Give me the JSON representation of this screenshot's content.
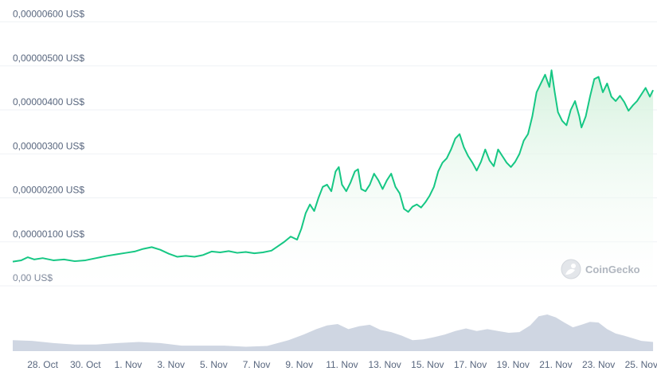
{
  "chart_data": {
    "type": "area",
    "ylabel": "",
    "xlabel": "",
    "ylim": [
      0,
      6e-06
    ],
    "y_ticks": [
      {
        "value": 6e-06,
        "label": "0,00000600 US$"
      },
      {
        "value": 5e-06,
        "label": "0,00000500 US$"
      },
      {
        "value": 4e-06,
        "label": "0,00000400 US$"
      },
      {
        "value": 3e-06,
        "label": "0,00000300 US$"
      },
      {
        "value": 2e-06,
        "label": "0,00000200 US$"
      },
      {
        "value": 1e-06,
        "label": "0,00000100 US$"
      },
      {
        "value": 0,
        "label": "0,00 US$"
      }
    ],
    "x_range": [
      26.6,
      56.1
    ],
    "x_ticks": [
      {
        "day": 28,
        "label": "28. Oct"
      },
      {
        "day": 30,
        "label": "30. Oct"
      },
      {
        "day": 32,
        "label": "1. Nov"
      },
      {
        "day": 34,
        "label": "3. Nov"
      },
      {
        "day": 36,
        "label": "5. Nov"
      },
      {
        "day": 38,
        "label": "7. Nov"
      },
      {
        "day": 40,
        "label": "9. Nov"
      },
      {
        "day": 42,
        "label": "11. Nov"
      },
      {
        "day": 44,
        "label": "13. Nov"
      },
      {
        "day": 46,
        "label": "15. Nov"
      },
      {
        "day": 48,
        "label": "17. Nov"
      },
      {
        "day": 50,
        "label": "19. Nov"
      },
      {
        "day": 52,
        "label": "21. Nov"
      },
      {
        "day": 54,
        "label": "23. Nov"
      },
      {
        "day": 56,
        "label": "25. Nov"
      }
    ],
    "series": [
      {
        "values": [
          [
            26.6,
            5.5e-07
          ],
          [
            27.0,
            5.8e-07
          ],
          [
            27.3,
            6.5e-07
          ],
          [
            27.6,
            6e-07
          ],
          [
            28.0,
            6.3e-07
          ],
          [
            28.5,
            5.8e-07
          ],
          [
            29.0,
            6e-07
          ],
          [
            29.5,
            5.6e-07
          ],
          [
            30.0,
            5.8e-07
          ],
          [
            30.5,
            6.3e-07
          ],
          [
            31.0,
            6.8e-07
          ],
          [
            31.5,
            7.2e-07
          ],
          [
            31.9,
            7.5e-07
          ],
          [
            32.3,
            7.8e-07
          ],
          [
            32.7,
            8.4e-07
          ],
          [
            33.1,
            8.8e-07
          ],
          [
            33.5,
            8.2e-07
          ],
          [
            33.9,
            7.3e-07
          ],
          [
            34.3,
            6.6e-07
          ],
          [
            34.7,
            6.8e-07
          ],
          [
            35.1,
            6.6e-07
          ],
          [
            35.5,
            7e-07
          ],
          [
            35.9,
            7.8e-07
          ],
          [
            36.3,
            7.6e-07
          ],
          [
            36.7,
            7.9e-07
          ],
          [
            37.1,
            7.5e-07
          ],
          [
            37.5,
            7.7e-07
          ],
          [
            37.9,
            7.4e-07
          ],
          [
            38.3,
            7.6e-07
          ],
          [
            38.7,
            8e-07
          ],
          [
            39.0,
            9e-07
          ],
          [
            39.3,
            1e-06
          ],
          [
            39.6,
            1.12e-06
          ],
          [
            39.9,
            1.05e-06
          ],
          [
            40.1,
            1.3e-06
          ],
          [
            40.3,
            1.65e-06
          ],
          [
            40.5,
            1.85e-06
          ],
          [
            40.7,
            1.7e-06
          ],
          [
            40.9,
            2e-06
          ],
          [
            41.1,
            2.25e-06
          ],
          [
            41.3,
            2.3e-06
          ],
          [
            41.5,
            2.15e-06
          ],
          [
            41.7,
            2.6e-06
          ],
          [
            41.85,
            2.7e-06
          ],
          [
            42.0,
            2.3e-06
          ],
          [
            42.2,
            2.15e-06
          ],
          [
            42.4,
            2.35e-06
          ],
          [
            42.6,
            2.6e-06
          ],
          [
            42.75,
            2.65e-06
          ],
          [
            42.9,
            2.2e-06
          ],
          [
            43.1,
            2.15e-06
          ],
          [
            43.3,
            2.3e-06
          ],
          [
            43.5,
            2.55e-06
          ],
          [
            43.7,
            2.4e-06
          ],
          [
            43.9,
            2.2e-06
          ],
          [
            44.1,
            2.4e-06
          ],
          [
            44.3,
            2.55e-06
          ],
          [
            44.5,
            2.25e-06
          ],
          [
            44.7,
            2.1e-06
          ],
          [
            44.9,
            1.75e-06
          ],
          [
            45.1,
            1.68e-06
          ],
          [
            45.3,
            1.8e-06
          ],
          [
            45.5,
            1.85e-06
          ],
          [
            45.7,
            1.78e-06
          ],
          [
            45.9,
            1.9e-06
          ],
          [
            46.1,
            2.05e-06
          ],
          [
            46.3,
            2.25e-06
          ],
          [
            46.5,
            2.6e-06
          ],
          [
            46.7,
            2.8e-06
          ],
          [
            46.9,
            2.9e-06
          ],
          [
            47.1,
            3.1e-06
          ],
          [
            47.3,
            3.35e-06
          ],
          [
            47.5,
            3.45e-06
          ],
          [
            47.7,
            3.15e-06
          ],
          [
            47.9,
            2.95e-06
          ],
          [
            48.1,
            2.8e-06
          ],
          [
            48.3,
            2.62e-06
          ],
          [
            48.5,
            2.82e-06
          ],
          [
            48.7,
            3.1e-06
          ],
          [
            48.9,
            2.85e-06
          ],
          [
            49.1,
            2.72e-06
          ],
          [
            49.3,
            3.1e-06
          ],
          [
            49.5,
            2.95e-06
          ],
          [
            49.7,
            2.8e-06
          ],
          [
            49.9,
            2.7e-06
          ],
          [
            50.1,
            2.82e-06
          ],
          [
            50.3,
            3e-06
          ],
          [
            50.5,
            3.3e-06
          ],
          [
            50.7,
            3.45e-06
          ],
          [
            50.9,
            3.85e-06
          ],
          [
            51.1,
            4.4e-06
          ],
          [
            51.3,
            4.6e-06
          ],
          [
            51.5,
            4.8e-06
          ],
          [
            51.7,
            4.52e-06
          ],
          [
            51.8,
            4.9e-06
          ],
          [
            51.95,
            4.4e-06
          ],
          [
            52.1,
            3.95e-06
          ],
          [
            52.3,
            3.75e-06
          ],
          [
            52.5,
            3.65e-06
          ],
          [
            52.7,
            4e-06
          ],
          [
            52.9,
            4.2e-06
          ],
          [
            53.1,
            3.85e-06
          ],
          [
            53.2,
            3.6e-06
          ],
          [
            53.4,
            3.85e-06
          ],
          [
            53.6,
            4.3e-06
          ],
          [
            53.8,
            4.7e-06
          ],
          [
            54.0,
            4.75e-06
          ],
          [
            54.2,
            4.4e-06
          ],
          [
            54.4,
            4.6e-06
          ],
          [
            54.6,
            4.3e-06
          ],
          [
            54.8,
            4.2e-06
          ],
          [
            55.0,
            4.32e-06
          ],
          [
            55.2,
            4.18e-06
          ],
          [
            55.4,
            3.98e-06
          ],
          [
            55.6,
            4.1e-06
          ],
          [
            55.8,
            4.2e-06
          ],
          [
            56.0,
            4.35e-06
          ],
          [
            56.2,
            4.5e-06
          ],
          [
            56.4,
            4.3e-06
          ],
          [
            56.55,
            4.45e-06
          ]
        ]
      }
    ],
    "volume": [
      [
        26.6,
        0.3
      ],
      [
        27.5,
        0.28
      ],
      [
        28.5,
        0.22
      ],
      [
        29.5,
        0.18
      ],
      [
        30.5,
        0.18
      ],
      [
        31.5,
        0.22
      ],
      [
        32.5,
        0.25
      ],
      [
        33.5,
        0.22
      ],
      [
        34.5,
        0.15
      ],
      [
        35.5,
        0.15
      ],
      [
        36.5,
        0.15
      ],
      [
        37.5,
        0.12
      ],
      [
        38.5,
        0.14
      ],
      [
        39.5,
        0.3
      ],
      [
        40.2,
        0.45
      ],
      [
        40.8,
        0.6
      ],
      [
        41.3,
        0.7
      ],
      [
        41.8,
        0.74
      ],
      [
        42.3,
        0.6
      ],
      [
        42.8,
        0.68
      ],
      [
        43.3,
        0.72
      ],
      [
        43.8,
        0.58
      ],
      [
        44.3,
        0.52
      ],
      [
        44.8,
        0.42
      ],
      [
        45.3,
        0.3
      ],
      [
        45.8,
        0.32
      ],
      [
        46.3,
        0.38
      ],
      [
        46.8,
        0.45
      ],
      [
        47.3,
        0.55
      ],
      [
        47.8,
        0.62
      ],
      [
        48.3,
        0.55
      ],
      [
        48.8,
        0.6
      ],
      [
        49.3,
        0.55
      ],
      [
        49.8,
        0.5
      ],
      [
        50.3,
        0.52
      ],
      [
        50.8,
        0.7
      ],
      [
        51.2,
        0.95
      ],
      [
        51.6,
        1.0
      ],
      [
        52.0,
        0.92
      ],
      [
        52.4,
        0.78
      ],
      [
        52.8,
        0.65
      ],
      [
        53.2,
        0.72
      ],
      [
        53.6,
        0.8
      ],
      [
        54.0,
        0.78
      ],
      [
        54.4,
        0.6
      ],
      [
        54.8,
        0.48
      ],
      [
        55.2,
        0.42
      ],
      [
        55.6,
        0.35
      ],
      [
        56.0,
        0.28
      ],
      [
        56.55,
        0.25
      ]
    ],
    "grid": true,
    "legend": "none",
    "colors": {
      "line": "#16c784",
      "area_top": "#d3f1dc",
      "area_bottom": "#ffffff",
      "volume": "#cfd6e2",
      "grid": "#eff2f5",
      "tick_text": "#58667e"
    }
  },
  "watermark": {
    "text": "CoinGecko",
    "icon": "gecko-logo-icon"
  }
}
